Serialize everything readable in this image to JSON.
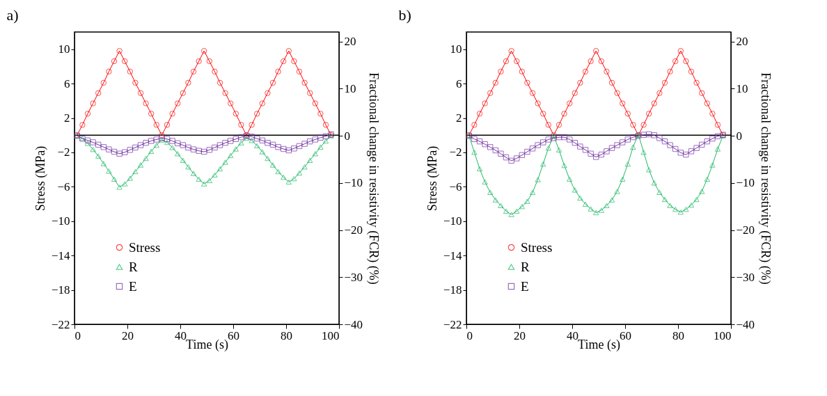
{
  "chart_data": [
    {
      "type": "line",
      "title": "a)",
      "xlabel": "Time (s)",
      "ylabel": "Stress (MPa)",
      "y2label": "Fractional change in resistivity (FCR) (%)",
      "x": [
        1,
        3,
        5,
        7,
        9,
        11,
        13,
        15,
        17,
        19,
        21,
        23,
        25,
        27,
        29,
        31,
        33,
        35,
        37,
        39,
        41,
        43,
        45,
        47,
        49,
        51,
        53,
        55,
        57,
        59,
        61,
        63,
        65,
        67,
        69,
        71,
        73,
        75,
        77,
        79,
        81,
        83,
        85,
        87,
        89,
        91,
        93,
        95,
        97
      ],
      "xlim": [
        0,
        100
      ],
      "xticks": [
        0,
        20,
        40,
        60,
        80,
        100
      ],
      "ylim": [
        -22,
        12
      ],
      "yticks": [
        -22,
        -18,
        -14,
        -10,
        -6,
        -2,
        2,
        6,
        10
      ],
      "y2lim": [
        -40,
        22
      ],
      "y2ticks": [
        -40,
        -30,
        -20,
        -10,
        0,
        10,
        20
      ],
      "grid": false,
      "legend": "left",
      "line_style": "solid",
      "ref_lines": [
        {
          "axis": "y",
          "value": 0,
          "color": "#000000"
        }
      ],
      "series": [
        {
          "name": "Stress",
          "color": "#ff0000",
          "marker": "circle",
          "values": [
            0,
            1.2,
            2.5,
            3.7,
            4.9,
            6.1,
            7.4,
            8.6,
            9.8,
            8.6,
            7.4,
            6.1,
            4.9,
            3.7,
            2.5,
            1.2,
            0,
            1.2,
            2.5,
            3.7,
            4.9,
            6.1,
            7.4,
            8.6,
            9.8,
            8.6,
            7.4,
            6.1,
            4.9,
            3.7,
            2.5,
            1.2,
            0,
            1.2,
            2.5,
            3.7,
            4.9,
            6.1,
            7.4,
            8.6,
            9.8,
            8.6,
            7.4,
            6.1,
            4.9,
            3.7,
            2.5,
            1.2,
            0
          ]
        },
        {
          "name": "R",
          "color": "#1fb866",
          "marker": "triangle",
          "axis": "y2",
          "values": [
            0,
            -0.6,
            -1.6,
            -2.9,
            -4.3,
            -5.9,
            -7.5,
            -9.2,
            -10.9,
            -10.2,
            -9.0,
            -7.6,
            -6.2,
            -4.8,
            -3.3,
            -2.0,
            -0.9,
            -1.4,
            -2.5,
            -3.8,
            -5.2,
            -6.6,
            -8.0,
            -9.2,
            -10.2,
            -9.5,
            -8.3,
            -7.0,
            -5.6,
            -4.2,
            -2.8,
            -1.5,
            -0.5,
            -1.0,
            -2.1,
            -3.4,
            -4.8,
            -6.2,
            -7.6,
            -8.8,
            -9.8,
            -9.1,
            -7.9,
            -6.6,
            -5.2,
            -3.8,
            -2.4,
            -1.1,
            0
          ]
        },
        {
          "name": "E",
          "color": "#7030a0",
          "marker": "square",
          "axis": "y2",
          "values": [
            0,
            -0.6,
            -1.0,
            -1.4,
            -1.9,
            -2.4,
            -2.9,
            -3.4,
            -3.8,
            -3.5,
            -3.0,
            -2.5,
            -2.0,
            -1.5,
            -1.1,
            -0.8,
            -0.5,
            -0.7,
            -1.1,
            -1.6,
            -2.0,
            -2.5,
            -2.9,
            -3.2,
            -3.4,
            -3.0,
            -2.5,
            -2.0,
            -1.5,
            -1.1,
            -0.7,
            -0.3,
            0,
            -0.2,
            -0.6,
            -1.0,
            -1.5,
            -1.9,
            -2.4,
            -2.8,
            -3.1,
            -2.7,
            -2.2,
            -1.7,
            -1.2,
            -0.8,
            -0.4,
            -0.1,
            0.3
          ]
        }
      ]
    },
    {
      "type": "line",
      "title": "b)",
      "xlabel": "Time (s)",
      "ylabel": "Stress (MPa)",
      "y2label": "Fractional change in resistivity (FCR) (%)",
      "x": [
        1,
        3,
        5,
        7,
        9,
        11,
        13,
        15,
        17,
        19,
        21,
        23,
        25,
        27,
        29,
        31,
        33,
        35,
        37,
        39,
        41,
        43,
        45,
        47,
        49,
        51,
        53,
        55,
        57,
        59,
        61,
        63,
        65,
        67,
        69,
        71,
        73,
        75,
        77,
        79,
        81,
        83,
        85,
        87,
        89,
        91,
        93,
        95,
        97
      ],
      "xlim": [
        0,
        100
      ],
      "xticks": [
        0,
        20,
        40,
        60,
        80,
        100
      ],
      "ylim": [
        -22,
        12
      ],
      "yticks": [
        -22,
        -18,
        -14,
        -10,
        -6,
        -2,
        2,
        6,
        10
      ],
      "y2lim": [
        -40,
        22
      ],
      "y2ticks": [
        -40,
        -30,
        -20,
        -10,
        0,
        10,
        20
      ],
      "grid": false,
      "legend": "left",
      "line_style": "solid",
      "ref_lines": [
        {
          "axis": "y",
          "value": 0,
          "color": "#000000"
        }
      ],
      "series": [
        {
          "name": "Stress",
          "color": "#ff0000",
          "marker": "circle",
          "values": [
            0,
            1.2,
            2.5,
            3.7,
            4.9,
            6.1,
            7.4,
            8.6,
            9.8,
            8.6,
            7.4,
            6.1,
            4.9,
            3.7,
            2.5,
            1.2,
            0,
            1.2,
            2.5,
            3.7,
            4.9,
            6.1,
            7.4,
            8.6,
            9.8,
            8.6,
            7.4,
            6.1,
            4.9,
            3.7,
            2.5,
            1.2,
            0,
            1.2,
            2.5,
            3.7,
            4.9,
            6.1,
            7.4,
            8.6,
            9.8,
            8.6,
            7.4,
            6.1,
            4.9,
            3.7,
            2.5,
            1.2,
            0
          ]
        },
        {
          "name": "R",
          "color": "#1fb866",
          "marker": "triangle",
          "axis": "y2",
          "values": [
            0,
            -3.5,
            -7.0,
            -9.8,
            -12.0,
            -13.6,
            -14.8,
            -16.0,
            -16.7,
            -16.0,
            -15.0,
            -13.9,
            -12.0,
            -9.3,
            -6.0,
            -2.6,
            0,
            -3.0,
            -6.3,
            -9.2,
            -11.5,
            -13.2,
            -14.5,
            -15.5,
            -16.3,
            -15.8,
            -14.8,
            -13.6,
            -11.8,
            -9.2,
            -6.0,
            -2.4,
            0.3,
            -3.5,
            -7.2,
            -10.0,
            -12.0,
            -13.5,
            -14.8,
            -15.6,
            -16.2,
            -15.6,
            -14.7,
            -13.5,
            -11.8,
            -9.2,
            -6.2,
            -2.8,
            0
          ]
        },
        {
          "name": "E",
          "color": "#7030a0",
          "marker": "square",
          "axis": "y2",
          "values": [
            0,
            -0.7,
            -1.2,
            -1.8,
            -2.4,
            -3.1,
            -3.8,
            -4.6,
            -5.3,
            -4.8,
            -4.1,
            -3.4,
            -2.7,
            -2.0,
            -1.4,
            -0.8,
            -0.5,
            -0.3,
            -0.3,
            -0.8,
            -1.5,
            -2.3,
            -3.0,
            -3.8,
            -4.5,
            -4.0,
            -3.3,
            -2.6,
            -2.0,
            -1.4,
            -0.8,
            -0.3,
            0,
            0.2,
            0.3,
            0.1,
            -0.5,
            -1.2,
            -2.0,
            -2.8,
            -3.6,
            -4.0,
            -3.3,
            -2.6,
            -1.9,
            -1.2,
            -0.6,
            -0.1,
            0.2
          ]
        }
      ]
    }
  ]
}
